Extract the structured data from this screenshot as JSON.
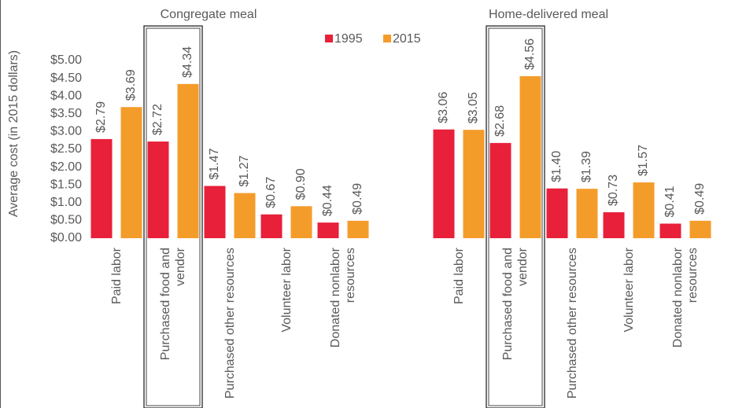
{
  "chart_data": [
    {
      "type": "bar",
      "title": "Congregate meal",
      "y_label": "Average cost (in 2015 dollars)",
      "categories": [
        "Paid labor",
        "Purchased food and vendor",
        "Purchased other resources",
        "Volunteer labor",
        "Donated nonlabor resources"
      ],
      "series": [
        {
          "name": "1995",
          "color": "#e8203a",
          "values": [
            2.79,
            2.72,
            1.47,
            0.67,
            0.44
          ],
          "value_labels": [
            "$2.79",
            "$2.72",
            "$1.47",
            "$0.67",
            "$0.44"
          ]
        },
        {
          "name": "2015",
          "color": "#f49c2a",
          "values": [
            3.69,
            4.34,
            1.27,
            0.9,
            0.49
          ],
          "value_labels": [
            "$3.69",
            "$4.34",
            "$1.27",
            "$0.90",
            "$0.49"
          ]
        }
      ],
      "ylim": [
        0,
        5
      ],
      "yticks": [
        {
          "value": 0,
          "label": "$0.00"
        },
        {
          "value": 0.5,
          "label": "$0.50"
        },
        {
          "value": 1,
          "label": "$1.00"
        },
        {
          "value": 1.5,
          "label": "$1.50"
        },
        {
          "value": 2,
          "label": "$2.00"
        },
        {
          "value": 2.5,
          "label": "$2.50"
        },
        {
          "value": 3,
          "label": "$3.00"
        },
        {
          "value": 3.5,
          "label": "$3.50"
        },
        {
          "value": 4,
          "label": "$4.00"
        },
        {
          "value": 4.5,
          "label": "$4.50"
        },
        {
          "value": 5,
          "label": "$5.00"
        }
      ]
    },
    {
      "type": "bar",
      "title": "Home-delivered meal",
      "categories": [
        "Paid labor",
        "Purchased food and vendor",
        "Purchased other resources",
        "Volunteer labor",
        "Donated nonlabor resources"
      ],
      "series": [
        {
          "color": "#e8203a",
          "values": [
            3.06,
            2.68,
            1.4,
            0.73,
            0.41
          ],
          "value_labels": [
            "$3.06",
            "$2.68",
            "$1.40",
            "$0.73",
            "$0.41"
          ]
        },
        {
          "color": "#f49c2a",
          "values": [
            3.05,
            4.56,
            1.39,
            1.57,
            0.49
          ],
          "value_labels": [
            "$3.05",
            "$4.56",
            "$1.39",
            "$1.57",
            "$0.49"
          ]
        }
      ],
      "ylim": [
        0,
        5
      ]
    }
  ]
}
